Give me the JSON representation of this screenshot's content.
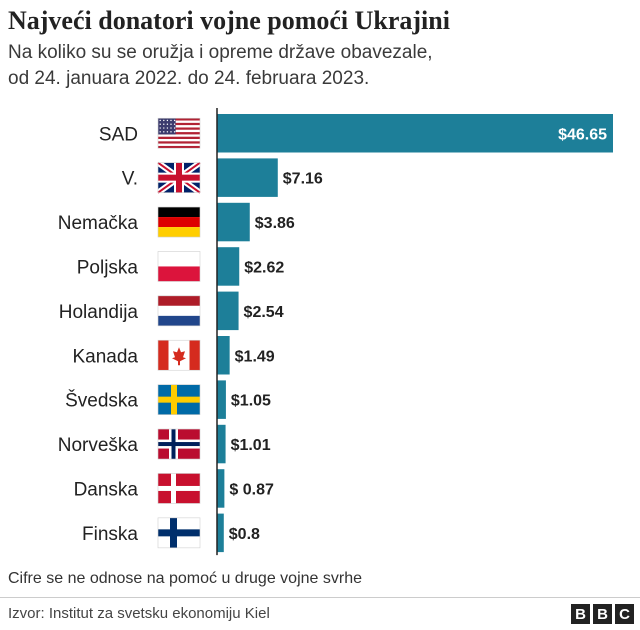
{
  "header": {
    "title": "Najveći donatori vojne pomoći Ukrajini",
    "subtitle_line1": "Na koliko su se oružja i opreme države obavezale,",
    "subtitle_line2": "od 24. januara 2022. do 24. februara 2023."
  },
  "footer": {
    "note": "Cifre se ne odnose na pomoć u druge vojne svrhe",
    "source": "Izvor: Institut za svetsku ekonomiju Kiel",
    "logo_letters": [
      "B",
      "B",
      "C"
    ]
  },
  "colors": {
    "bar": "#1d7f99",
    "axis": "#222222",
    "inside_label": "#ffffff"
  },
  "chart_data": {
    "type": "bar",
    "orientation": "horizontal",
    "categories": [
      "SAD",
      "V.",
      "Nemačka",
      "Poljska",
      "Holandija",
      "Kanada",
      "Švedska",
      "Norveška",
      "Danska",
      "Finska"
    ],
    "values": [
      46.65,
      7.16,
      3.86,
      2.62,
      2.54,
      1.49,
      1.05,
      1.01,
      0.87,
      0.8
    ],
    "value_labels": [
      "$46.65",
      "$7.16",
      "$3.86",
      "$2.62",
      "$2.54",
      "$1.49",
      "$1.05",
      "$1.01",
      "$ 0.87",
      "$0.8"
    ],
    "flags": [
      "usa-flag",
      "uk-flag",
      "germany-flag",
      "poland-flag",
      "netherlands-flag",
      "canada-flag",
      "sweden-flag",
      "norway-flag",
      "denmark-flag",
      "finland-flag"
    ],
    "xlim": [
      0,
      46.65
    ],
    "grid": false,
    "legend": "none"
  }
}
